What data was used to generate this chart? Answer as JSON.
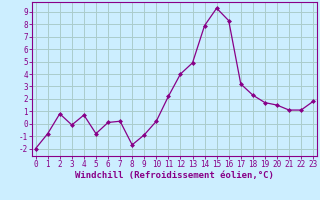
{
  "x": [
    0,
    1,
    2,
    3,
    4,
    5,
    6,
    7,
    8,
    9,
    10,
    11,
    12,
    13,
    14,
    15,
    16,
    17,
    18,
    19,
    20,
    21,
    22,
    23
  ],
  "y": [
    -2.0,
    -0.8,
    0.8,
    -0.1,
    0.7,
    -0.8,
    0.1,
    0.2,
    -1.7,
    -0.9,
    0.2,
    2.2,
    4.0,
    4.9,
    7.9,
    9.3,
    8.3,
    3.2,
    2.3,
    1.7,
    1.5,
    1.1,
    1.1,
    1.8
  ],
  "line_color": "#880088",
  "marker": "D",
  "marker_size": 2.0,
  "bg_color": "#cceeff",
  "grid_color": "#aacccc",
  "xlabel": "Windchill (Refroidissement éolien,°C)",
  "ylabel_ticks": [
    -2,
    -1,
    0,
    1,
    2,
    3,
    4,
    5,
    6,
    7,
    8,
    9
  ],
  "ylim": [
    -2.6,
    9.8
  ],
  "xlim": [
    -0.3,
    23.3
  ],
  "tick_color": "#880088",
  "tick_fontsize": 5.5,
  "xlabel_fontsize": 6.5,
  "axis_color": "#880088",
  "linewidth": 0.9
}
